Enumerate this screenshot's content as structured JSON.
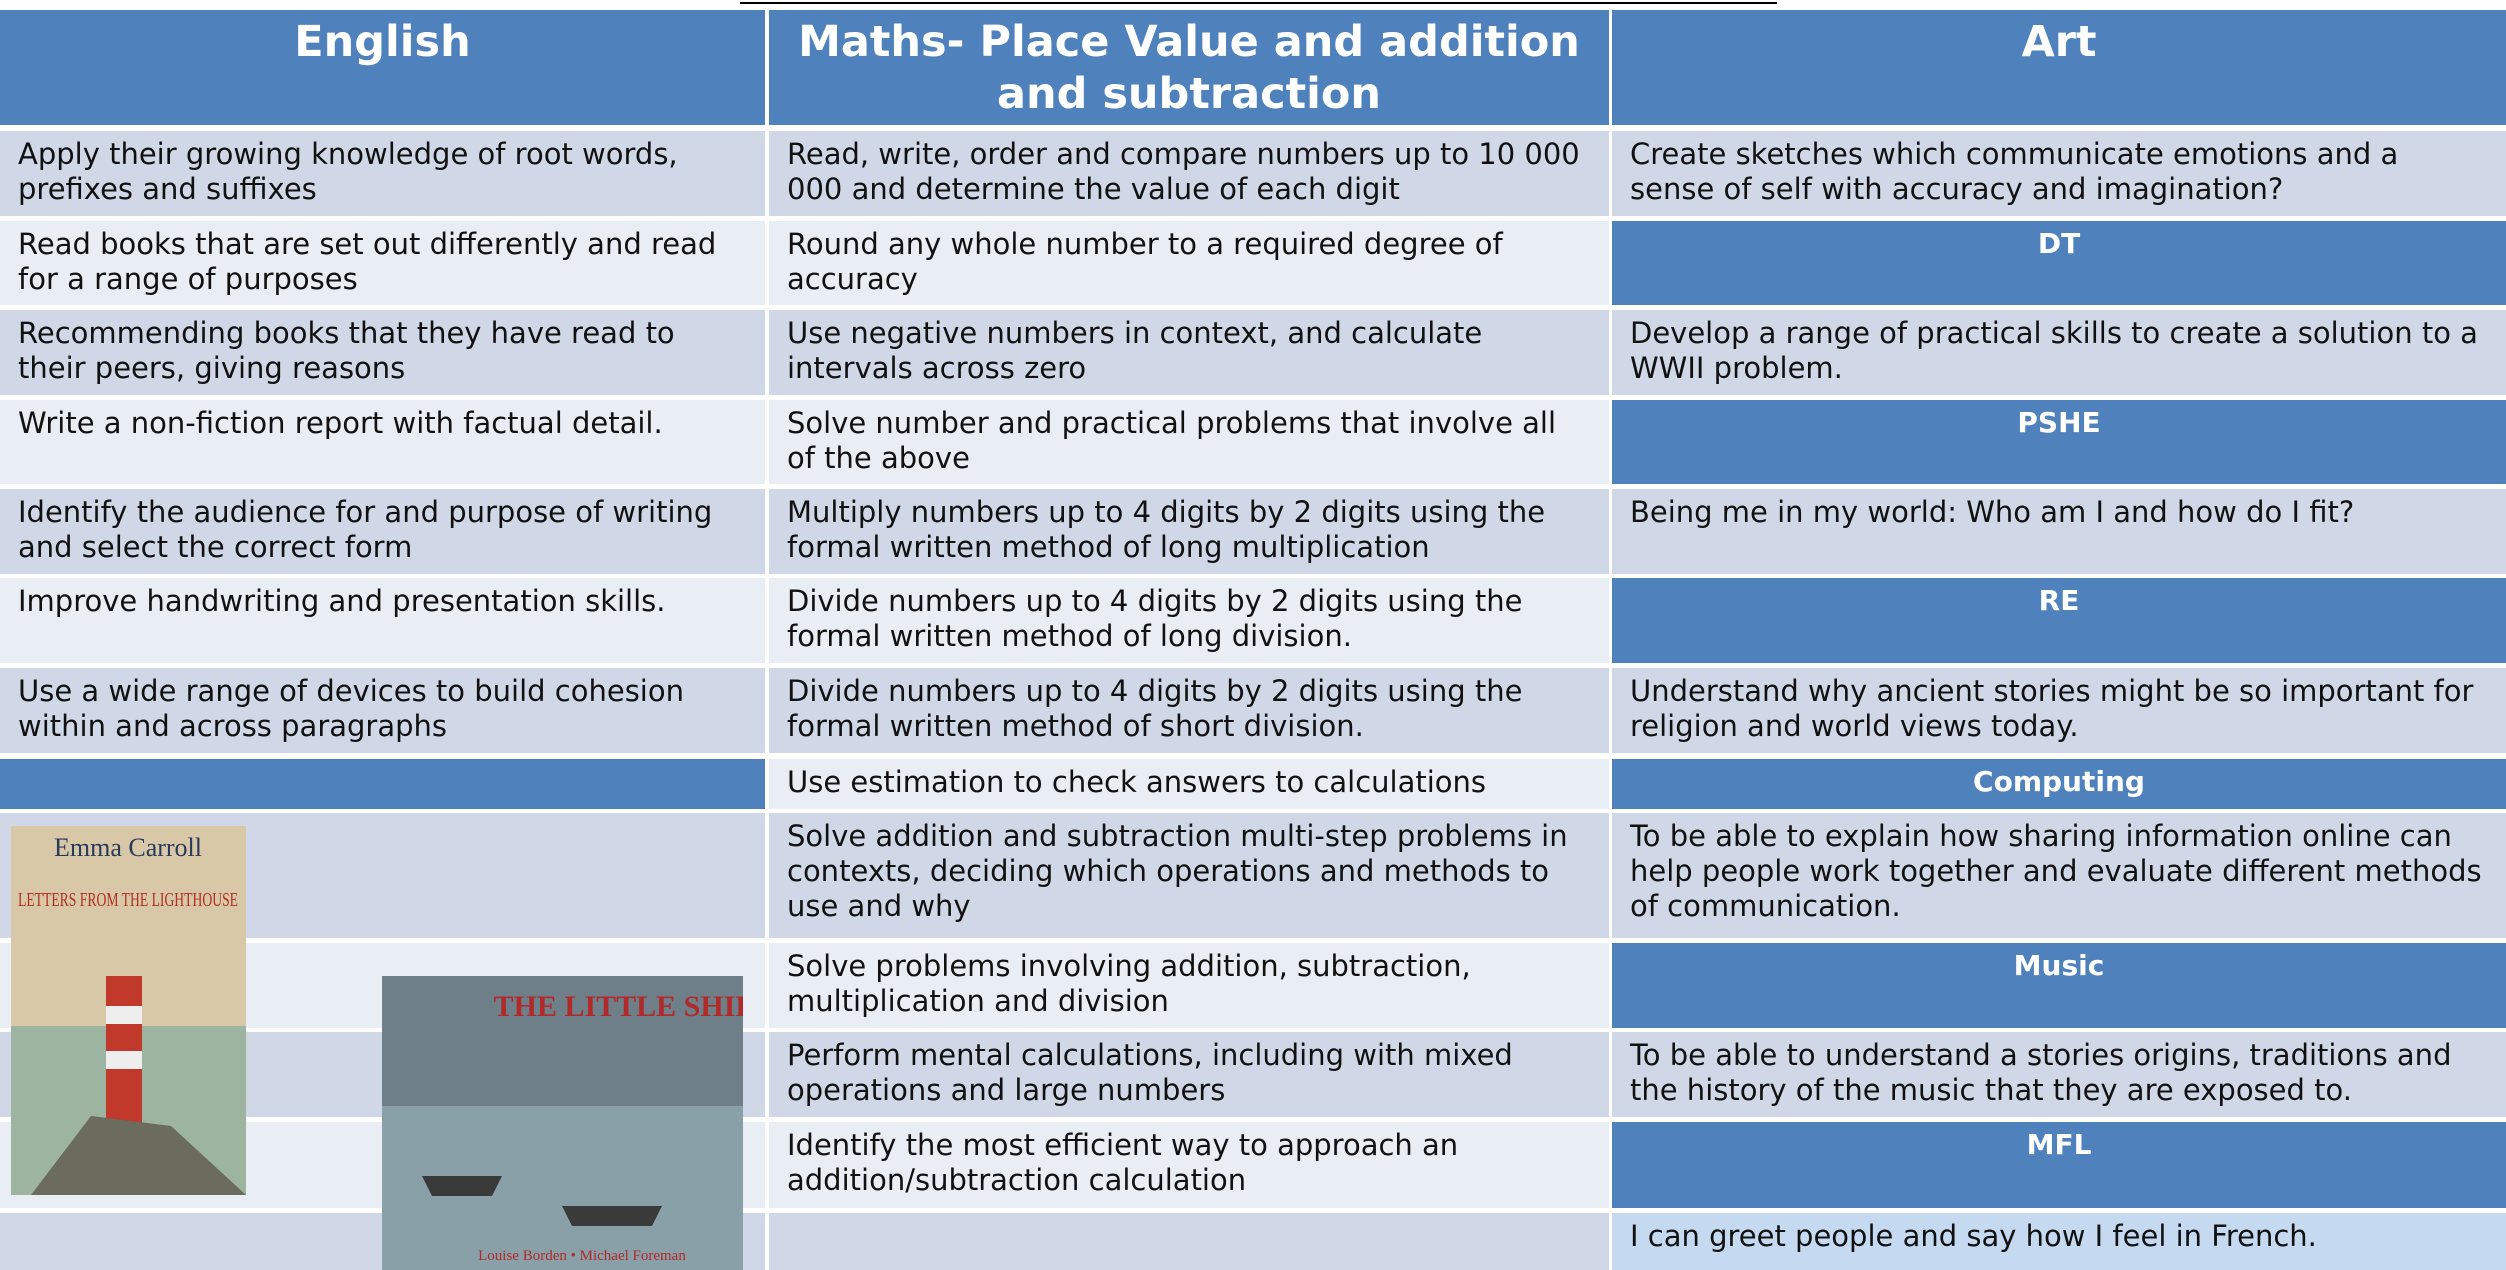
{
  "header": {
    "columns": [
      "English",
      "Maths- Place Value and addition and subtraction",
      "Art"
    ]
  },
  "english": [
    "Apply their growing knowledge of root words, prefixes and suffixes",
    "Read books that are set out differently and read for a range of purposes",
    "Recommending books that they have read to their peers, giving reasons",
    "Write a non-fiction report with factual detail.",
    " Identify the audience for and purpose of writing and select the correct form",
    "Improve handwriting and presentation skills.",
    "Use a wide range of devices to build cohesion within and across paragraphs"
  ],
  "maths": [
    "Read, write, order and compare numbers up to   10 000 000 and determine the value of each digit",
    "Round any whole number to a required degree of accuracy",
    "Use negative numbers in context, and calculate intervals across zero",
    "Solve number and practical problems that involve all of the above",
    "Multiply numbers up to 4 digits by 2 digits using the formal written method of long multiplication",
    "Divide numbers up to 4 digits by 2 digits using the formal written method of long division.",
    "Divide numbers up to 4 digits by 2 digits using the formal written method of short division.",
    "Use estimation to check answers to calculations",
    "Solve addition and subtraction multi-step problems in contexts, deciding which operations and methods to use and why",
    "Solve problems involving addition, subtraction, multiplication and division",
    "Perform mental calculations, including with mixed operations and large numbers",
    "Identify the most efficient way to approach an addition/subtraction calculation"
  ],
  "other_subjects": [
    {
      "text": "Create sketches which communicate emotions and a sense of self with accuracy and imagination?"
    },
    {
      "heading": "DT"
    },
    {
      "text": "Develop a range of practical skills to create a solution to a WWII problem."
    },
    {
      "heading": "PSHE"
    },
    {
      "text": "Being me in my world: Who am I and how do I fit?"
    },
    {
      "heading": "RE"
    },
    {
      "text": "Understand why ancient stories might be so important for religion and world views today."
    },
    {
      "heading": "Computing"
    },
    {
      "text": "To be able to explain how sharing information online can help people work together and evaluate different methods of communication."
    },
    {
      "heading": "Music"
    },
    {
      "text": "To be able to understand a stories origins, traditions and the history of the music that they are exposed to."
    },
    {
      "heading": "MFL"
    },
    {
      "text": "I can greet people and say how I feel in French."
    }
  ],
  "book_covers": [
    {
      "author": "Emma Carroll",
      "title": "LETTERS FROM THE LIGHTHOUSE"
    },
    {
      "title": "THE LITTLE SHIPS",
      "authors": "Louise Borden • Michael Foreman"
    }
  ]
}
